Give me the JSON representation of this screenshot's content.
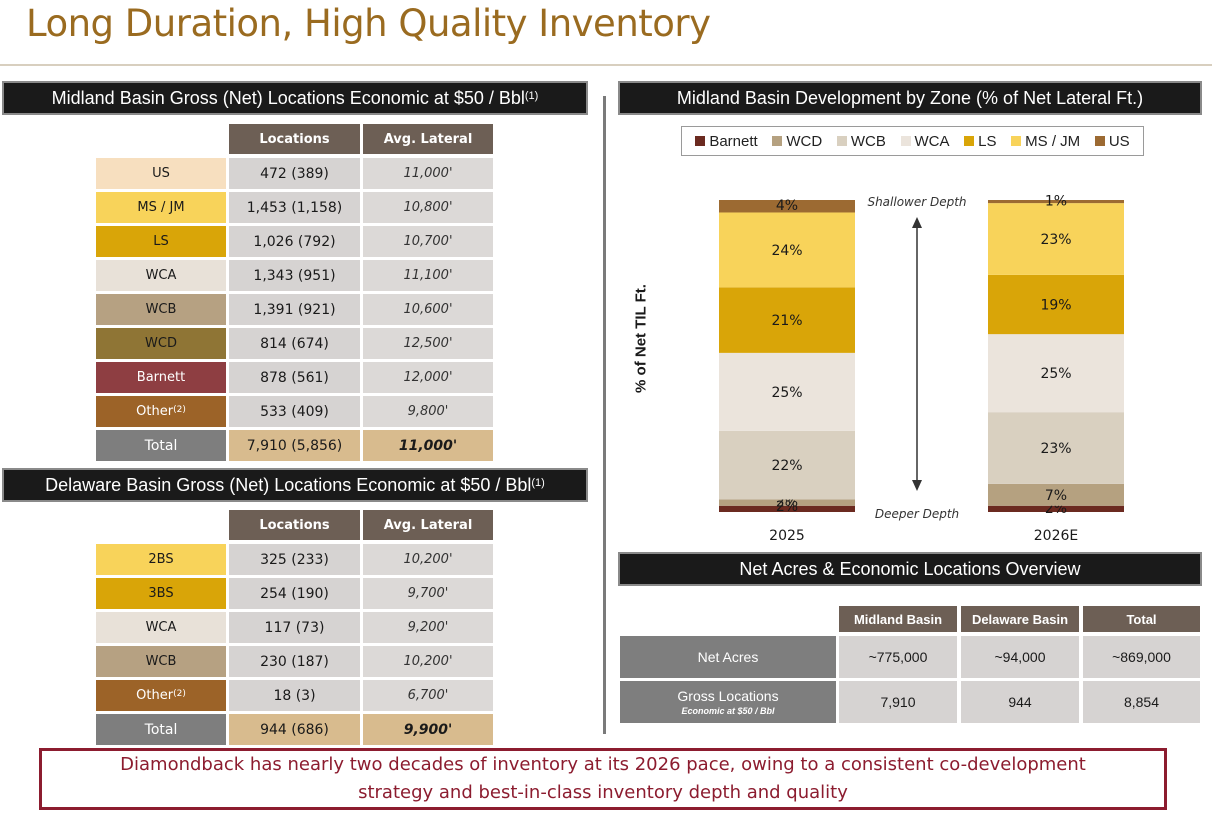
{
  "page": {
    "title": "Long Duration, High Quality Inventory",
    "callout": "Diamondback has nearly two decades of inventory at its 2026 pace, owing to a consistent co-development strategy and best-in-class inventory depth and quality"
  },
  "midland_table": {
    "title": "Midland Basin Gross (Net) Locations Economic at $50 / Bbl",
    "title_sup": "(1)",
    "headers": [
      "Locations",
      "Avg. Lateral"
    ],
    "rows": [
      {
        "zone": "US",
        "locations": "472 (389)",
        "lateral": "11,000'",
        "color": "#f7dfbf",
        "text": "#1a1a1a"
      },
      {
        "zone": "MS / JM",
        "locations": "1,453 (1,158)",
        "lateral": "10,800'",
        "color": "#f8d35a",
        "text": "#1a1a1a"
      },
      {
        "zone": "LS",
        "locations": "1,026 (792)",
        "lateral": "10,700'",
        "color": "#d9a508",
        "text": "#1a1a1a"
      },
      {
        "zone": "WCA",
        "locations": "1,343 (951)",
        "lateral": "11,100'",
        "color": "#e8e1d8",
        "text": "#1a1a1a"
      },
      {
        "zone": "WCB",
        "locations": "1,391 (921)",
        "lateral": "10,600'",
        "color": "#b6a182",
        "text": "#1a1a1a"
      },
      {
        "zone": "WCD",
        "locations": "814 (674)",
        "lateral": "12,500'",
        "color": "#8f7535",
        "text": "#1a1a1a"
      },
      {
        "zone": "Barnett",
        "locations": "878 (561)",
        "lateral": "12,000'",
        "color": "#8e3e42",
        "text": "#ffffff"
      },
      {
        "zone": "Other",
        "zone_sup": "(2)",
        "locations": "533 (409)",
        "lateral": "9,800'",
        "color": "#9c6328",
        "text": "#ffffff"
      }
    ],
    "total": {
      "label": "Total",
      "locations": "7,910 (5,856)",
      "lateral": "11,000'"
    }
  },
  "delaware_table": {
    "title": "Delaware Basin Gross (Net) Locations Economic at $50 / Bbl",
    "title_sup": "(1)",
    "headers": [
      "Locations",
      "Avg. Lateral"
    ],
    "rows": [
      {
        "zone": "2BS",
        "locations": "325 (233)",
        "lateral": "10,200'",
        "color": "#f8d35a",
        "text": "#1a1a1a"
      },
      {
        "zone": "3BS",
        "locations": "254 (190)",
        "lateral": "9,700'",
        "color": "#d9a508",
        "text": "#1a1a1a"
      },
      {
        "zone": "WCA",
        "locations": "117 (73)",
        "lateral": "9,200'",
        "color": "#e8e1d8",
        "text": "#1a1a1a"
      },
      {
        "zone": "WCB",
        "locations": "230 (187)",
        "lateral": "10,200'",
        "color": "#b6a182",
        "text": "#1a1a1a"
      },
      {
        "zone": "Other",
        "zone_sup": "(2)",
        "locations": "18 (3)",
        "lateral": "6,700'",
        "color": "#9c6328",
        "text": "#ffffff"
      }
    ],
    "total": {
      "label": "Total",
      "locations": "944 (686)",
      "lateral": "9,900'"
    }
  },
  "chart_data": {
    "type": "bar",
    "stacked": true,
    "title": "Midland Basin Development by Zone (% of Net Lateral Ft.)",
    "ylabel": "% of Net TIL Ft.",
    "categories": [
      "2025",
      "2026E"
    ],
    "ylim": [
      0,
      100
    ],
    "legend_position": "top",
    "annotations": {
      "top": "Shallower Depth",
      "bottom": "Deeper Depth"
    },
    "series": [
      {
        "name": "Barnett",
        "values": [
          2,
          2
        ],
        "color": "#6b2a20",
        "labels": [
          "",
          "2%"
        ]
      },
      {
        "name": "WCD",
        "values": [
          2,
          7
        ],
        "color": "#b5a180",
        "labels": [
          "2%",
          "7%"
        ]
      },
      {
        "name": "WCB",
        "values": [
          22,
          23
        ],
        "color": "#d9d0c0",
        "labels": [
          "22%",
          "23%"
        ]
      },
      {
        "name": "WCA",
        "values": [
          25,
          25
        ],
        "color": "#ebe4dc",
        "labels": [
          "25%",
          "25%"
        ]
      },
      {
        "name": "LS",
        "values": [
          21,
          19
        ],
        "color": "#d9a508",
        "labels": [
          "21%",
          "19%"
        ]
      },
      {
        "name": "MS / JM",
        "values": [
          24,
          23
        ],
        "color": "#f8d35a",
        "labels": [
          "24%",
          "23%"
        ]
      },
      {
        "name": "US",
        "values": [
          4,
          1
        ],
        "color": "#9c6a32",
        "labels": [
          "4%",
          "1%"
        ]
      }
    ],
    "extra_labels": [
      {
        "category": "2025",
        "text": "2%"
      }
    ]
  },
  "overview": {
    "title": "Net Acres & Economic Locations Overview",
    "headers": [
      "Midland Basin",
      "Delaware Basin",
      "Total"
    ],
    "rows": [
      {
        "label": "Net Acres",
        "sub": "",
        "values": [
          "~775,000",
          "~94,000",
          "~869,000"
        ]
      },
      {
        "label": "Gross Locations",
        "sub": "Economic at $50 / Bbl",
        "values": [
          "7,910",
          "944",
          "8,854"
        ]
      }
    ]
  }
}
